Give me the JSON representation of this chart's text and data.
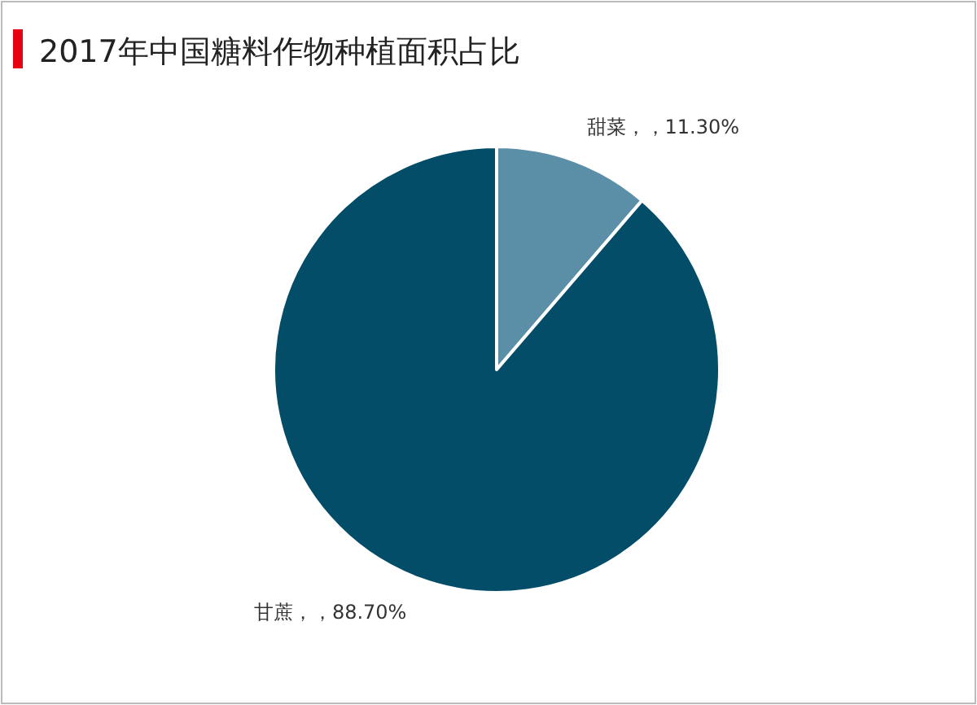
{
  "chart_data": {
    "type": "pie",
    "title": "2017年中国糖料作物种植面积占比",
    "categories": [
      "甜菜",
      "甘蔗"
    ],
    "values": [
      11.3,
      88.7
    ],
    "colors": [
      "#5b8fa8",
      "#034d69"
    ],
    "value_labels": [
      "，，11.30%",
      "，，88.70%"
    ]
  }
}
